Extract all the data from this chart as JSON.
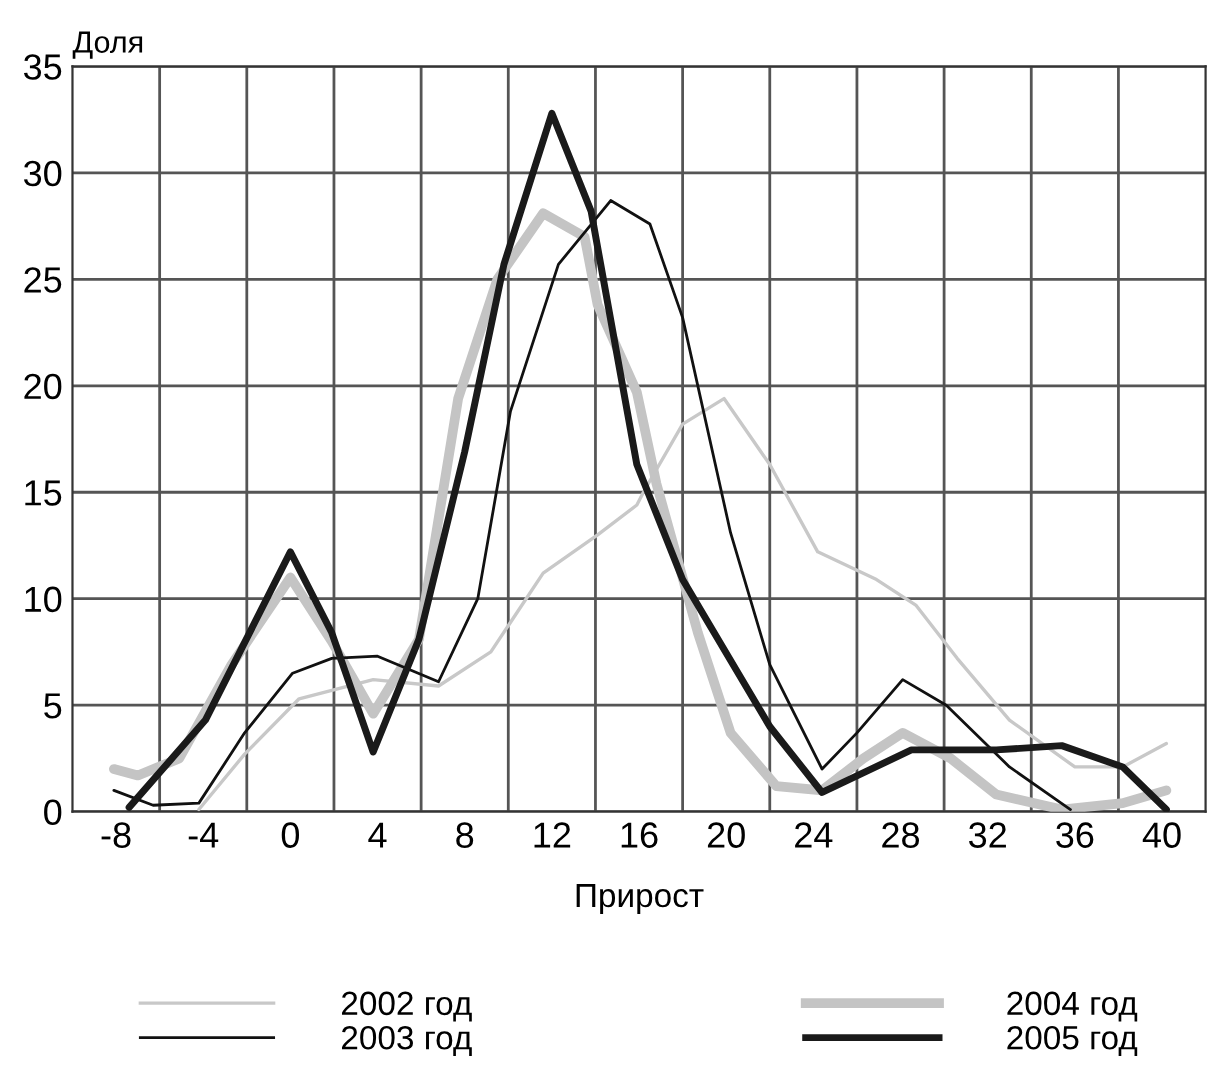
{
  "chart_data": {
    "type": "line",
    "xlabel": "Прирост",
    "ylabel": "Доля",
    "xlim": [
      -10,
      42
    ],
    "ylim": [
      0,
      35
    ],
    "xticks": [
      -8,
      -4,
      0,
      4,
      8,
      12,
      16,
      20,
      24,
      28,
      32,
      36,
      40
    ],
    "yticks": [
      0,
      5,
      10,
      15,
      20,
      25,
      30,
      35
    ],
    "grid": true,
    "legend": "bottom",
    "marker": "none",
    "line_style": "solid",
    "series": [
      {
        "name": "2002 год",
        "color": "#c8c8c8",
        "x": [
          -4.2,
          -2.1,
          0.4,
          3.8,
          6.8,
          9.2,
          11.6,
          14.1,
          15.9,
          16.2,
          18,
          19.9,
          22,
          24.2,
          26.9,
          28.7,
          30.6,
          33,
          36,
          38.2,
          40.2
        ],
        "values": [
          0.1,
          2.7,
          5.3,
          6.2,
          5.9,
          7.5,
          11.2,
          13,
          14.4,
          15,
          18.2,
          19.4,
          16.3,
          12.2,
          10.9,
          9.7,
          7.2,
          4.3,
          2.1,
          2.1,
          3.2
        ]
      },
      {
        "name": "2003 год",
        "color": "#111111",
        "x": [
          -8.1,
          -6.3,
          -4.2,
          -2.1,
          0.1,
          1.9,
          4,
          6.8,
          8.6,
          10.1,
          12.3,
          14.7,
          16.5,
          18,
          20.2,
          22,
          24.4,
          26,
          28.1,
          30.1,
          33,
          35.8
        ],
        "values": [
          1,
          0.3,
          0.4,
          3.7,
          6.5,
          7.2,
          7.3,
          6.1,
          10,
          18.8,
          25.7,
          28.7,
          27.6,
          23.2,
          13.1,
          6.9,
          2,
          3.7,
          6.2,
          5,
          2.1,
          0.1
        ]
      },
      {
        "name": "2004 год",
        "color": "#c4c4c4",
        "x": [
          -8.1,
          -7,
          -5.1,
          -2.7,
          0,
          1.9,
          3.8,
          5.9,
          7.7,
          9.5,
          11.6,
          13.5,
          14.1,
          15.9,
          16.8,
          18.7,
          20.2,
          22.3,
          24.4,
          26.3,
          28.1,
          30.3,
          32.4,
          35.4,
          38.2,
          40.2
        ],
        "values": [
          2,
          1.7,
          2.5,
          6.9,
          11,
          8,
          4.6,
          8.1,
          19.4,
          25,
          28.1,
          27,
          23.8,
          19.7,
          15.4,
          8.4,
          3.7,
          1.2,
          1,
          2.5,
          3.7,
          2.5,
          0.8,
          0.1,
          0.4,
          1
        ]
      },
      {
        "name": "2005 год",
        "color": "#1a1a1a",
        "x": [
          -7.4,
          -3.9,
          0,
          1.9,
          3.8,
          5.9,
          8,
          9.8,
          12,
          13.8,
          15.9,
          18,
          22,
          24.4,
          28.5,
          32.4,
          35.4,
          38.2,
          40.2
        ],
        "values": [
          0.2,
          4.3,
          12.2,
          8.4,
          2.8,
          8.1,
          16.9,
          25.7,
          32.8,
          28.2,
          16.3,
          10.9,
          4,
          0.9,
          2.9,
          2.9,
          3.1,
          2.1,
          0.1
        ]
      }
    ]
  }
}
